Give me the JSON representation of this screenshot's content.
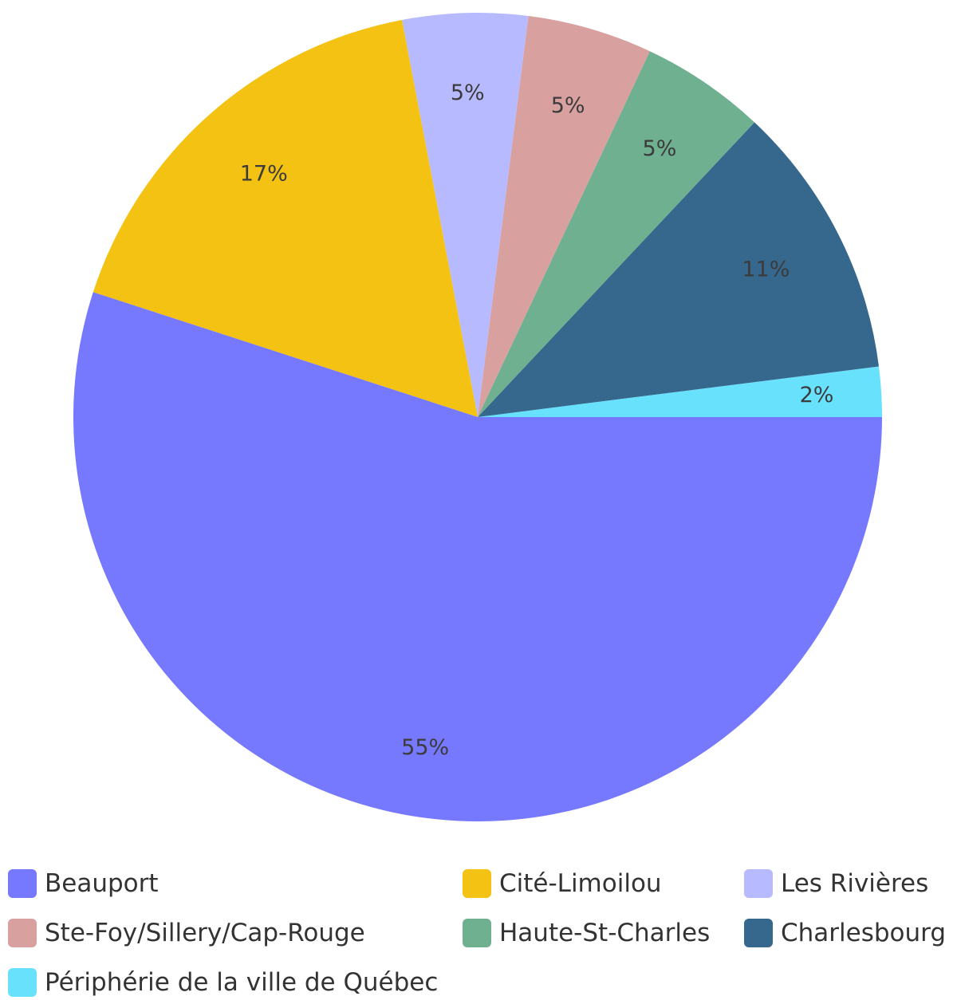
{
  "chart_data": {
    "type": "pie",
    "slices": [
      {
        "name": "Beauport",
        "value": 55,
        "label": "55%",
        "color": "#7678fe"
      },
      {
        "name": "Cité-Limoilou",
        "value": 17,
        "label": "17%",
        "color": "#f4c212"
      },
      {
        "name": "Les Rivières",
        "value": 5,
        "label": "5%",
        "color": "#b8baff"
      },
      {
        "name": "Ste-Foy/Sillery/Cap-Rouge",
        "value": 5,
        "label": "5%",
        "color": "#d9a0a0"
      },
      {
        "name": "Haute-St-Charles",
        "value": 5,
        "label": "5%",
        "color": "#6fb090"
      },
      {
        "name": "Charlesbourg",
        "value": 11,
        "label": "11%",
        "color": "#36678d"
      },
      {
        "name": "Périphérie de la ville de Québec",
        "value": 2,
        "label": "2%",
        "color": "#68e1fd"
      }
    ],
    "legend_position": "bottom"
  }
}
